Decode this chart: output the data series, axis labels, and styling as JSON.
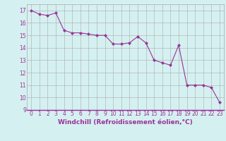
{
  "x": [
    0,
    1,
    2,
    3,
    4,
    5,
    6,
    7,
    8,
    9,
    10,
    11,
    12,
    13,
    14,
    15,
    16,
    17,
    18,
    19,
    20,
    21,
    22,
    23
  ],
  "y": [
    17.0,
    16.7,
    16.6,
    16.8,
    15.4,
    15.2,
    15.2,
    15.1,
    15.0,
    15.0,
    14.3,
    14.3,
    14.4,
    14.9,
    14.4,
    13.0,
    12.8,
    12.6,
    14.2,
    11.0,
    11.0,
    11.0,
    10.8,
    9.6
  ],
  "line_color": "#993399",
  "marker": "D",
  "marker_size": 2.0,
  "bg_color": "#d5f0f0",
  "grid_color": "#aaaaaa",
  "xlabel": "Windchill (Refroidissement éolien,°C)",
  "xlabel_color": "#993399",
  "xlabel_fontsize": 6.5,
  "tick_fontsize": 5.5,
  "ylabel_ticks": [
    9,
    10,
    11,
    12,
    13,
    14,
    15,
    16,
    17
  ],
  "xlim": [
    -0.5,
    23.5
  ],
  "ylim": [
    9,
    17.5
  ]
}
